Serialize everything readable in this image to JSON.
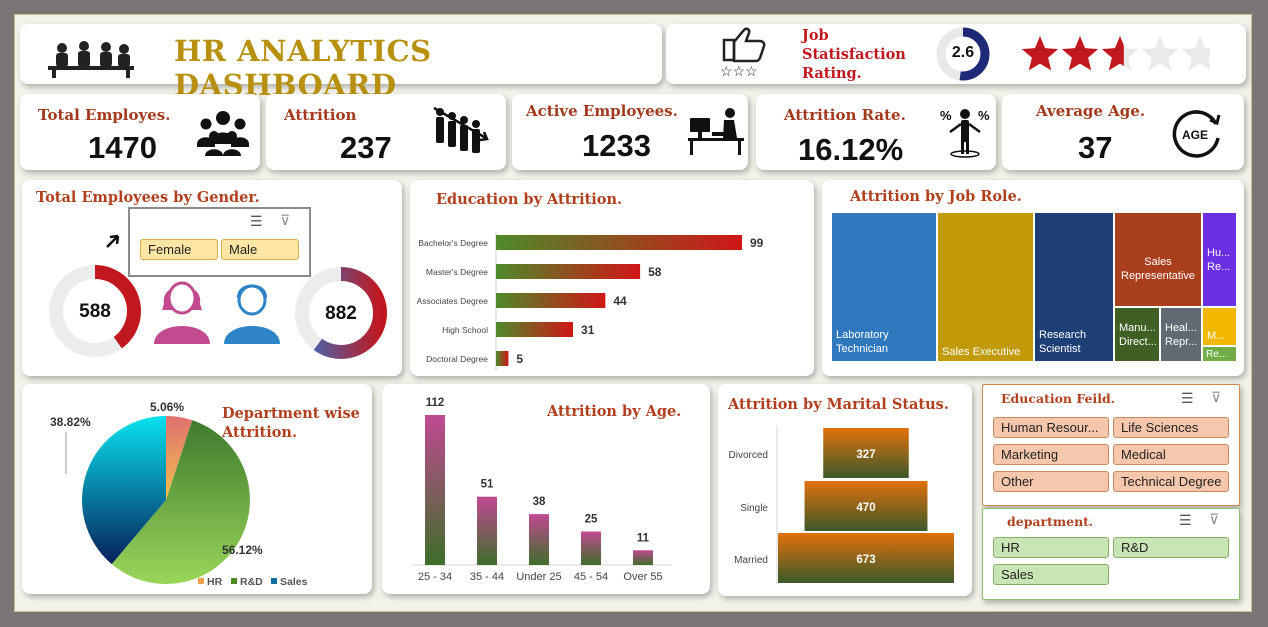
{
  "header": {
    "title": "HR ANALYTICS DASHBOARD",
    "rating_label": "Job Statisfaction Rating.",
    "rating_value": "2.6",
    "rating_numeric": 2.6,
    "rating_max": 5
  },
  "kpis": [
    {
      "label": "Total Employes.",
      "value": "1470",
      "icon": "people-group-icon"
    },
    {
      "label": "Attrition",
      "value": "237",
      "icon": "people-leaving-icon"
    },
    {
      "label": "Active Employees.",
      "value": "1233",
      "icon": "employee-at-desk-icon"
    },
    {
      "label": "Attrition Rate.",
      "value": "16.12%",
      "icon": "person-percent-icon"
    },
    {
      "label": "Average Age.",
      "value": "37",
      "icon": "age-cycle-icon"
    }
  ],
  "gender": {
    "title": "Total Employees by Gender.",
    "options": [
      "Female",
      "Male"
    ],
    "female_value": "588",
    "male_value": "882"
  },
  "colors": {
    "accent_red": "#c0181e",
    "gold": "#b8900f",
    "maroon": "#a33a1e",
    "female": "#c24b8f",
    "male": "#2f84c8"
  },
  "chart_data": [
    {
      "type": "pie",
      "title": "Total Employees by Gender.",
      "categories": [
        "Female",
        "Male"
      ],
      "values": [
        588,
        882
      ]
    },
    {
      "type": "bar",
      "title": "Education by Attrition.",
      "categories": [
        "Bachelor's Degree",
        "Master's Degree",
        "Associates Degree",
        "High School",
        "Doctoral Degree"
      ],
      "values": [
        99,
        58,
        44,
        31,
        5
      ]
    },
    {
      "type": "heatmap",
      "title": "Attrition by Job Role.",
      "categories": [
        "Laboratory Technician",
        "Sales Executive",
        "Research Scientist",
        "Sales Representative",
        "Human Resources",
        "Manufacturing Director",
        "Healthcare Representative",
        "Manager",
        "Research Director"
      ],
      "display_labels": [
        "Laboratory Technician",
        "Sales Executive",
        "Research Scientist",
        "Sales Representative",
        "Hu... Re...",
        "Manu... Direct...",
        "Heal... Repr...",
        "M...",
        "Re..."
      ],
      "colors": [
        "#2f78bd",
        "#c19a06",
        "#1e3f75",
        "#aa3f1d",
        "#6a2fe0",
        "#3f5f25",
        "#5f6a73",
        "#f2b800",
        "#70ad47"
      ]
    },
    {
      "type": "pie",
      "title": "Department wise Attrition.",
      "categories": [
        "HR",
        "R&D",
        "Sales"
      ],
      "values": [
        5.06,
        56.12,
        38.82
      ],
      "labels": [
        "5.06%",
        "56.12%",
        "38.82%"
      ]
    },
    {
      "type": "bar",
      "title": "Attrition by Age.",
      "categories": [
        "25 - 34",
        "35 - 44",
        "Under 25",
        "45 - 54",
        "Over 55"
      ],
      "values": [
        112,
        51,
        38,
        25,
        11
      ]
    },
    {
      "type": "bar",
      "title": "Attrition by Marital Status.",
      "categories": [
        "Divorced",
        "Single",
        "Married"
      ],
      "values": [
        327,
        470,
        673
      ]
    }
  ],
  "slicers": {
    "education_field": {
      "title": "Education Feild.",
      "items": [
        "Human Resour...",
        "Life Sciences",
        "Marketing",
        "Medical",
        "Other",
        "Technical Degree"
      ]
    },
    "department": {
      "title": "department.",
      "items": [
        "HR",
        "R&D",
        "Sales"
      ]
    }
  }
}
